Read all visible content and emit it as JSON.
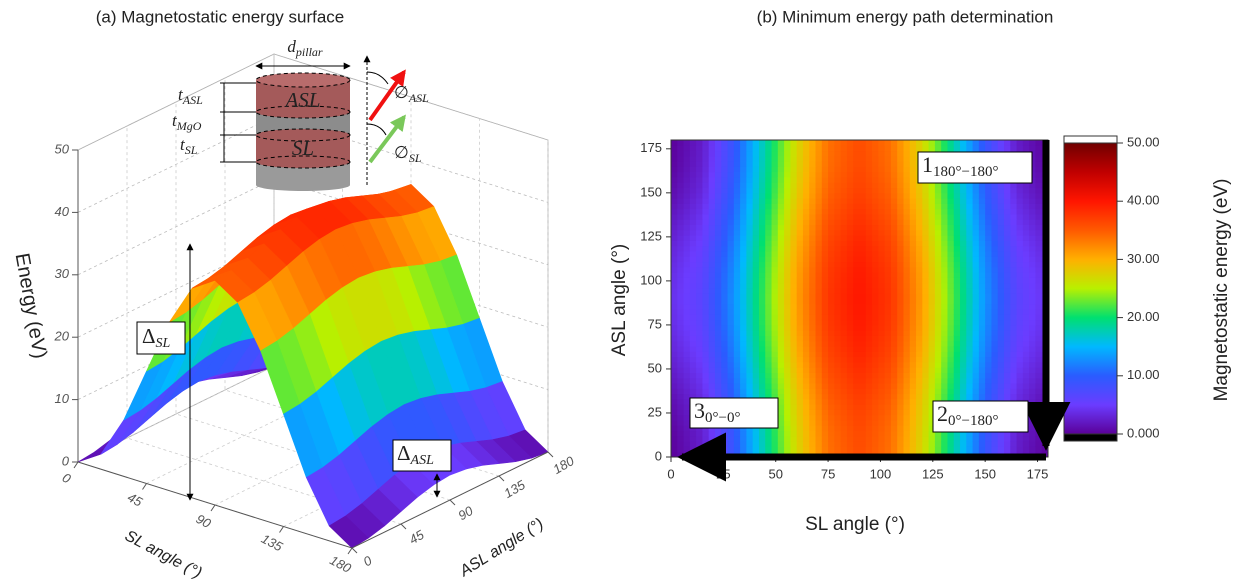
{
  "chart_data": [
    {
      "type": "surface",
      "title": "(a) Magnetostatic energy surface",
      "xlabel": "SL angle (°)",
      "ylabel": "ASL angle (°)",
      "zlabel": "Energy (eV)",
      "x": [
        0,
        15,
        30,
        45,
        60,
        75,
        90,
        105,
        120,
        135,
        150,
        165,
        180
      ],
      "y": [
        0,
        15,
        30,
        45,
        60,
        75,
        90,
        105,
        120,
        135,
        150,
        165,
        180
      ],
      "z": [
        [
          0,
          2.4,
          9,
          18,
          27,
          33.6,
          36,
          33.6,
          27,
          18,
          9,
          2.4,
          0
        ],
        [
          0.3,
          2.7,
          9.3,
          18.3,
          27.3,
          33.9,
          36.3,
          33.9,
          27.3,
          18.3,
          9.3,
          2.7,
          0.3
        ],
        [
          1,
          3.4,
          10,
          19,
          28,
          34.6,
          37,
          34.6,
          28,
          19,
          10,
          3.4,
          1
        ],
        [
          2,
          4.4,
          11,
          20,
          29,
          35.6,
          38,
          35.6,
          29,
          20,
          11,
          4.4,
          2
        ],
        [
          3,
          5.4,
          12,
          21,
          30,
          36.6,
          39,
          36.6,
          30,
          21,
          12,
          5.4,
          3
        ],
        [
          3.7,
          6.1,
          12.7,
          21.7,
          30.7,
          37.3,
          39.7,
          37.3,
          30.7,
          21.7,
          12.7,
          6.1,
          3.7
        ],
        [
          4,
          6.4,
          13,
          22,
          31,
          37.6,
          40,
          37.6,
          31,
          22,
          13,
          6.4,
          4
        ],
        [
          3.7,
          6.1,
          12.7,
          21.7,
          30.7,
          37.3,
          39.7,
          37.3,
          30.7,
          21.7,
          12.7,
          6.1,
          3.7
        ],
        [
          3,
          5.4,
          12,
          21,
          30,
          36.6,
          39,
          36.6,
          30,
          21,
          12,
          5.4,
          3
        ],
        [
          2,
          4.4,
          11,
          20,
          29,
          35.6,
          38,
          35.6,
          29,
          20,
          11,
          4.4,
          2
        ],
        [
          1,
          3.4,
          10,
          19,
          28,
          34.6,
          37,
          34.6,
          28,
          19,
          10,
          3.4,
          1
        ],
        [
          0.3,
          2.7,
          9.3,
          18.3,
          27.3,
          33.9,
          36.3,
          33.9,
          27.3,
          18.3,
          9.3,
          2.7,
          0.3
        ],
        [
          0,
          2.4,
          9,
          18,
          27,
          33.6,
          36,
          33.6,
          27,
          18,
          9,
          2.4,
          0
        ]
      ],
      "xlim": [
        0,
        180
      ],
      "ylim": [
        0,
        180
      ],
      "zlim": [
        0,
        50
      ],
      "xticks": [
        0,
        45,
        90,
        135,
        180
      ],
      "yticks": [
        0,
        45,
        90,
        135,
        180
      ],
      "zticks": [
        0,
        10,
        20,
        30,
        40,
        50
      ],
      "colormap": [
        "#5b0099",
        "#6b3cff",
        "#2a5cff",
        "#00b8ff",
        "#00e070",
        "#b8f000",
        "#ffb000",
        "#ff5a00",
        "#ff1500",
        "#c00000",
        "#700000"
      ],
      "annotations": [
        {
          "text": "Δ",
          "sub": "SL"
        },
        {
          "text": "Δ",
          "sub": "ASL"
        }
      ],
      "inset": {
        "layers": [
          "ASL",
          "SL"
        ],
        "dims": [
          {
            "text": "d",
            "sub": "pillar"
          },
          {
            "text": "t",
            "sub": "ASL"
          },
          {
            "text": "t",
            "sub": "MgO"
          },
          {
            "text": "t",
            "sub": "SL"
          }
        ],
        "angles": [
          {
            "text": "∅",
            "sub": "ASL"
          },
          {
            "text": "∅",
            "sub": "SL"
          }
        ]
      }
    },
    {
      "type": "contour",
      "title": "(b) Minimum energy path determination",
      "xlabel": "SL angle (°)",
      "ylabel": "ASL angle (°)",
      "x": [
        0,
        15,
        30,
        45,
        60,
        75,
        90,
        105,
        120,
        135,
        150,
        165,
        180
      ],
      "y": [
        0,
        15,
        30,
        45,
        60,
        75,
        90,
        105,
        120,
        135,
        150,
        165,
        180
      ],
      "z": [
        [
          0,
          2.4,
          9,
          18,
          27,
          33.6,
          36,
          33.6,
          27,
          18,
          9,
          2.4,
          0
        ],
        [
          0.3,
          2.7,
          9.3,
          18.3,
          27.3,
          33.9,
          36.3,
          33.9,
          27.3,
          18.3,
          9.3,
          2.7,
          0.3
        ],
        [
          1,
          3.4,
          10,
          19,
          28,
          34.6,
          37,
          34.6,
          28,
          19,
          10,
          3.4,
          1
        ],
        [
          2,
          4.4,
          11,
          20,
          29,
          35.6,
          38,
          35.6,
          29,
          20,
          11,
          4.4,
          2
        ],
        [
          3,
          5.4,
          12,
          21,
          30,
          36.6,
          39,
          36.6,
          30,
          21,
          12,
          5.4,
          3
        ],
        [
          3.7,
          6.1,
          12.7,
          21.7,
          30.7,
          37.3,
          39.7,
          37.3,
          30.7,
          21.7,
          12.7,
          6.1,
          3.7
        ],
        [
          4,
          6.4,
          13,
          22,
          31,
          37.6,
          40,
          37.6,
          31,
          22,
          13,
          6.4,
          4
        ],
        [
          3.7,
          6.1,
          12.7,
          21.7,
          30.7,
          37.3,
          39.7,
          37.3,
          30.7,
          21.7,
          12.7,
          6.1,
          3.7
        ],
        [
          3,
          5.4,
          12,
          21,
          30,
          36.6,
          39,
          36.6,
          30,
          21,
          12,
          5.4,
          3
        ],
        [
          2,
          4.4,
          11,
          20,
          29,
          35.6,
          38,
          35.6,
          29,
          20,
          11,
          4.4,
          2
        ],
        [
          1,
          3.4,
          10,
          19,
          28,
          34.6,
          37,
          34.6,
          28,
          19,
          10,
          3.4,
          1
        ],
        [
          0.3,
          2.7,
          9.3,
          18.3,
          27.3,
          33.9,
          36.3,
          33.9,
          27.3,
          18.3,
          9.3,
          2.7,
          0.3
        ],
        [
          0,
          2.4,
          9,
          18,
          27,
          33.6,
          36,
          33.6,
          27,
          18,
          9,
          2.4,
          0
        ]
      ],
      "xlim": [
        0,
        180
      ],
      "ylim": [
        0,
        180
      ],
      "zlim": [
        0,
        50
      ],
      "xticks": [
        0,
        25,
        50,
        75,
        100,
        125,
        150,
        175
      ],
      "yticks": [
        0,
        25,
        50,
        75,
        100,
        125,
        150,
        175
      ],
      "colormap": [
        "#5b0099",
        "#6b3cff",
        "#2a5cff",
        "#00b8ff",
        "#00e070",
        "#b8f000",
        "#ffb000",
        "#ff5a00",
        "#ff1500",
        "#c00000",
        "#700000"
      ],
      "colorbar": {
        "label": "Magnetostatic energy (eV)",
        "ticks": [
          {
            "value": 0,
            "label": "0.000"
          },
          {
            "value": 10,
            "label": "10.00"
          },
          {
            "value": 20,
            "label": "20.00"
          },
          {
            "value": 30,
            "label": "30.00"
          },
          {
            "value": 40,
            "label": "40.00"
          },
          {
            "value": 50,
            "label": "50.00"
          }
        ]
      },
      "annotations": [
        {
          "text": "1",
          "sub": "180°−180°"
        },
        {
          "text": "2",
          "sub": "0°−180°"
        },
        {
          "text": "3",
          "sub": "0°−0°"
        }
      ]
    }
  ]
}
